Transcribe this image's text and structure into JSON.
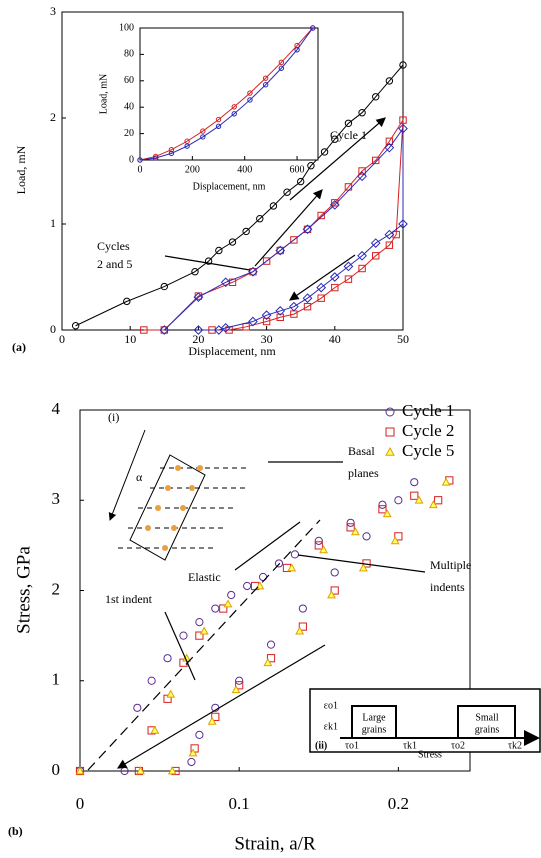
{
  "chart_data": [
    {
      "type": "line",
      "panel": "(a)",
      "xlabel": "Displacement, nm",
      "ylabel": "Load, mN",
      "xlim": [
        0,
        50
      ],
      "xticks": [
        0,
        10,
        20,
        30,
        40,
        50
      ],
      "ylim": [
        0,
        3
      ],
      "yticks": [
        0,
        1,
        2,
        3
      ],
      "annotations": [
        "Cycle 1",
        "Cycles",
        "2 and 5"
      ],
      "series": [
        {
          "color": "#000000",
          "marker": "circle",
          "x": [
            2,
            9.5,
            15,
            19.5,
            21.5,
            23,
            25,
            27,
            29,
            31,
            33,
            35,
            36.5,
            38.5,
            40,
            42,
            44,
            46,
            48,
            50
          ],
          "values": [
            0.04,
            0.27,
            0.41,
            0.55,
            0.65,
            0.75,
            0.83,
            0.93,
            1.05,
            1.17,
            1.3,
            1.4,
            1.55,
            1.68,
            1.8,
            1.95,
            2.05,
            2.2,
            2.35,
            2.5
          ]
        },
        {
          "color": "#d62020",
          "marker": "square",
          "x": [
            12,
            15,
            20,
            25,
            28,
            30,
            32,
            34,
            36,
            38,
            40,
            42,
            44,
            46,
            48,
            50,
            49,
            48,
            46,
            44,
            42,
            40,
            38,
            36,
            34,
            32,
            30,
            27,
            24.5,
            22
          ],
          "values": [
            0,
            0,
            0.32,
            0.45,
            0.55,
            0.65,
            0.75,
            0.85,
            0.95,
            1.08,
            1.2,
            1.35,
            1.5,
            1.6,
            1.78,
            1.98,
            0.9,
            0.8,
            0.7,
            0.58,
            0.48,
            0.4,
            0.3,
            0.22,
            0.15,
            0.12,
            0.08,
            0.03,
            0,
            0
          ]
        },
        {
          "color": "#2a2ab8",
          "marker": "diamond",
          "x": [
            15,
            20,
            24,
            28,
            32,
            36,
            40,
            44,
            48,
            50,
            50,
            48,
            46,
            44,
            42,
            40,
            38,
            36,
            34,
            32,
            30,
            28,
            24,
            23,
            20
          ],
          "values": [
            0,
            0.31,
            0.45,
            0.55,
            0.75,
            0.95,
            1.18,
            1.45,
            1.72,
            1.9,
            1.0,
            0.9,
            0.82,
            0.7,
            0.6,
            0.5,
            0.4,
            0.3,
            0.22,
            0.18,
            0.14,
            0.08,
            0.02,
            0,
            0
          ]
        }
      ]
    },
    {
      "type": "line",
      "xlabel": "Displacement, nm",
      "ylabel": "Load, mN",
      "xlim": [
        0,
        680
      ],
      "xticks": [
        0,
        200,
        400,
        600
      ],
      "ylim": [
        0,
        100
      ],
      "yticks": [
        0,
        20,
        40,
        60,
        80,
        100
      ],
      "series": [
        {
          "color": "#d62020",
          "marker": "circle",
          "x": [
            0,
            60,
            120,
            180,
            240,
            300,
            360,
            420,
            480,
            540,
            600,
            660
          ],
          "values": [
            0,
            2.7,
            7.8,
            14.2,
            21.9,
            30.6,
            40.3,
            50.7,
            62,
            74,
            86.7,
            100
          ]
        },
        {
          "color": "#2a2ab8",
          "marker": "circle",
          "x": [
            0,
            60,
            120,
            180,
            240,
            300,
            360,
            420,
            480,
            540,
            600,
            660
          ],
          "values": [
            0,
            1.5,
            5,
            10.5,
            17.5,
            25.5,
            35,
            45.5,
            57,
            69.5,
            83.5,
            100
          ]
        }
      ]
    },
    {
      "type": "scatter",
      "panel": "(b)",
      "xlabel": "Strain, a/R",
      "ylabel": "Stress, GPa",
      "xlim": [
        0,
        0.245
      ],
      "xticks": [
        0,
        0.1,
        0.2
      ],
      "ylim": [
        0,
        4
      ],
      "yticks": [
        0,
        1,
        2,
        3,
        4
      ],
      "legend": "upper right",
      "annotations": [
        "(i)",
        "α",
        "Basal",
        "planes",
        "Elastic",
        "Multiple",
        "indents",
        "1st indent"
      ],
      "schematic": {
        "labels": [
          "εo1",
          "εk1",
          "Large",
          "grains",
          "Small",
          "grains",
          "τo1",
          "τk1",
          "τo2",
          "τk2"
        ],
        "panel": "(ii)",
        "xlabel": "Stress"
      },
      "series": [
        {
          "name": "Cycle 1",
          "color": "#5a2d91",
          "marker": "circle",
          "x": [
            0,
            0.028,
            0.036,
            0.045,
            0.055,
            0.065,
            0.075,
            0.085,
            0.095,
            0.105,
            0.115,
            0.125,
            0.135,
            0.15,
            0.17,
            0.19,
            0.21,
            0.2,
            0.18,
            0.16,
            0.14,
            0.12,
            0.1,
            0.085,
            0.075,
            0.07
          ],
          "values": [
            0,
            0,
            0.7,
            1.0,
            1.25,
            1.5,
            1.65,
            1.8,
            1.95,
            2.05,
            2.15,
            2.3,
            2.4,
            2.55,
            2.75,
            2.95,
            3.2,
            3.0,
            2.6,
            2.2,
            1.8,
            1.4,
            1.0,
            0.7,
            0.4,
            0.1
          ]
        },
        {
          "name": "Cycle 2",
          "color": "#d62020",
          "marker": "square",
          "x": [
            0,
            0.037,
            0.045,
            0.055,
            0.065,
            0.075,
            0.09,
            0.11,
            0.13,
            0.15,
            0.17,
            0.19,
            0.21,
            0.232,
            0.225,
            0.2,
            0.18,
            0.16,
            0.14,
            0.12,
            0.1,
            0.085,
            0.072,
            0.06
          ],
          "values": [
            0,
            0,
            0.45,
            0.8,
            1.2,
            1.5,
            1.8,
            2.05,
            2.25,
            2.5,
            2.7,
            2.9,
            3.05,
            3.22,
            3.0,
            2.6,
            2.3,
            2.0,
            1.6,
            1.25,
            0.95,
            0.6,
            0.25,
            0
          ]
        },
        {
          "name": "Cycle 5",
          "color": "#e0a000",
          "marker": "triangle",
          "x": [
            0,
            0.038,
            0.047,
            0.057,
            0.067,
            0.078,
            0.093,
            0.113,
            0.133,
            0.153,
            0.173,
            0.193,
            0.213,
            0.23,
            0.222,
            0.198,
            0.178,
            0.158,
            0.138,
            0.118,
            0.098,
            0.083,
            0.071,
            0.058
          ],
          "values": [
            0,
            0,
            0.45,
            0.85,
            1.25,
            1.55,
            1.85,
            2.05,
            2.25,
            2.45,
            2.65,
            2.85,
            3.0,
            3.2,
            2.95,
            2.55,
            2.25,
            1.95,
            1.55,
            1.2,
            0.9,
            0.55,
            0.2,
            0
          ]
        }
      ]
    }
  ]
}
